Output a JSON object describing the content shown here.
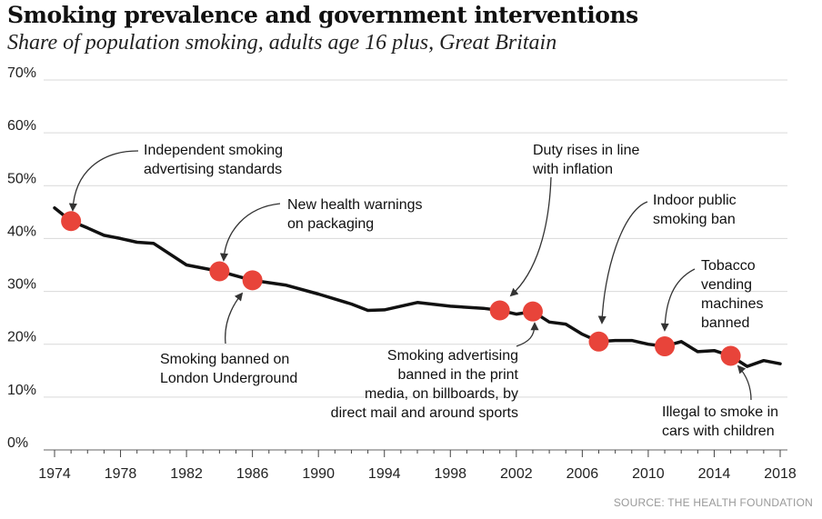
{
  "title": "Smoking prevalence and government interventions",
  "subtitle": "Share of population smoking, adults age 16 plus, Great Britain",
  "source": "SOURCE: THE HEALTH FOUNDATION",
  "colors": {
    "line": "#111111",
    "marker": "#e8443a",
    "grid": "#d9d9d9",
    "arrow": "#333333"
  },
  "chart_data": {
    "type": "line",
    "xlim": [
      1974,
      2018
    ],
    "ylim": [
      0,
      70
    ],
    "grid": true,
    "y_ticks": [
      "0%",
      "10%",
      "20%",
      "30%",
      "40%",
      "50%",
      "60%",
      "70%"
    ],
    "x_ticks": [
      "1974",
      "1978",
      "1982",
      "1986",
      "1990",
      "1994",
      "1998",
      "2002",
      "2006",
      "2010",
      "2014",
      "2018"
    ],
    "series": [
      {
        "x": [
          1974,
          1975,
          1976,
          1977,
          1978,
          1979,
          1980,
          1982,
          1984,
          1986,
          1988,
          1990,
          1992,
          1993,
          1994,
          1996,
          1998,
          2000,
          2001,
          2002,
          2003,
          2004,
          2005,
          2006,
          2007,
          2008,
          2009,
          2010,
          2011,
          2012,
          2013,
          2014,
          2015,
          2016,
          2017,
          2018
        ],
        "y": [
          45.8,
          43.3,
          42.0,
          40.6,
          40.0,
          39.3,
          39.1,
          35.0,
          33.8,
          32.1,
          31.2,
          29.5,
          27.6,
          26.4,
          26.5,
          27.9,
          27.2,
          26.8,
          26.4,
          25.7,
          26.2,
          24.2,
          23.8,
          21.9,
          20.5,
          20.7,
          20.7,
          20.0,
          19.6,
          20.5,
          18.6,
          18.8,
          17.8,
          15.8,
          16.9,
          16.3
        ]
      }
    ],
    "events": [
      {
        "x": 1975,
        "y": 43.3,
        "label": [
          "Independent smoking",
          "advertising standards"
        ]
      },
      {
        "x": 1984,
        "y": 33.8,
        "label": [
          "New health warnings",
          "on packaging"
        ]
      },
      {
        "x": 1986,
        "y": 32.1,
        "label": [
          "Smoking banned on",
          "London Underground"
        ]
      },
      {
        "x": 2001,
        "y": 26.4,
        "label": [
          "Duty rises in line",
          "with inflation"
        ]
      },
      {
        "x": 2003,
        "y": 26.2,
        "label": [
          "Smoking advertising",
          "banned in the print",
          "media, on billboards, by",
          "direct mail and around sports"
        ]
      },
      {
        "x": 2007,
        "y": 20.5,
        "label": [
          "Indoor public",
          "smoking ban"
        ]
      },
      {
        "x": 2011,
        "y": 19.6,
        "label": [
          "Tobacco",
          "vending",
          "machines",
          "banned"
        ]
      },
      {
        "x": 2015,
        "y": 17.8,
        "label": [
          "Illegal to smoke in",
          "cars with children"
        ]
      }
    ]
  }
}
